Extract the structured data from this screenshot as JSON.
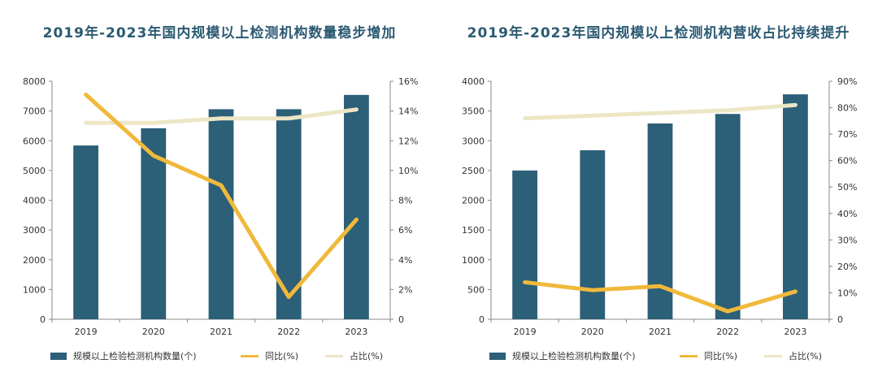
{
  "colors": {
    "bar": "#2c5f78",
    "yoy": "#f0b93b",
    "share": "#ece6c6",
    "title": "#2b5a72"
  },
  "chart_data": [
    {
      "type": "bar",
      "title": "2019年-2023年国内规模以上检测机构数量稳步增加",
      "categories": [
        "2019",
        "2020",
        "2021",
        "2022",
        "2023"
      ],
      "series": [
        {
          "name": "规模以上检验检测机构数量(个)",
          "type": "bar",
          "axis": "left",
          "values": [
            5840,
            6420,
            7060,
            7060,
            7540
          ]
        },
        {
          "name": "同比(%)",
          "type": "line",
          "axis": "right",
          "values": [
            15.1,
            11.0,
            9.0,
            1.5,
            6.7
          ]
        },
        {
          "name": "占比(%)",
          "type": "line",
          "axis": "right",
          "values": [
            13.2,
            13.2,
            13.5,
            13.5,
            14.1
          ]
        }
      ],
      "ylim_left": [
        0,
        8000
      ],
      "yticks_left": [
        "0",
        "1000",
        "2000",
        "3000",
        "4000",
        "5000",
        "6000",
        "7000",
        "8000"
      ],
      "ylim_right": [
        0,
        16
      ],
      "yticks_right": [
        "0",
        "2%",
        "4%",
        "6%",
        "8%",
        "10%",
        "12%",
        "14%",
        "16%"
      ],
      "legend_position": "bottom",
      "grid": false
    },
    {
      "type": "bar",
      "title": "2019年-2023年国内规模以上检测机构营收占比持续提升",
      "categories": [
        "2019",
        "2020",
        "2021",
        "2022",
        "2023"
      ],
      "series": [
        {
          "name": "规模以上检验检测机构数量(个)",
          "type": "bar",
          "axis": "left",
          "values": [
            2500,
            2840,
            3290,
            3450,
            3780
          ]
        },
        {
          "name": "同比(%)",
          "type": "line",
          "axis": "right",
          "values": [
            14.0,
            11.0,
            12.5,
            3.0,
            10.5
          ]
        },
        {
          "name": "占比(%)",
          "type": "line",
          "axis": "right",
          "values": [
            76,
            77,
            78,
            79,
            81
          ]
        }
      ],
      "ylim_left": [
        0,
        4000
      ],
      "yticks_left": [
        "0",
        "500",
        "1000",
        "1500",
        "2000",
        "2500",
        "3000",
        "3500",
        "4000"
      ],
      "ylim_right": [
        0,
        90
      ],
      "yticks_right": [
        "0",
        "10%",
        "20%",
        "30%",
        "40%",
        "50%",
        "60%",
        "70%",
        "80%",
        "90%"
      ],
      "legend_position": "bottom",
      "grid": false
    }
  ]
}
